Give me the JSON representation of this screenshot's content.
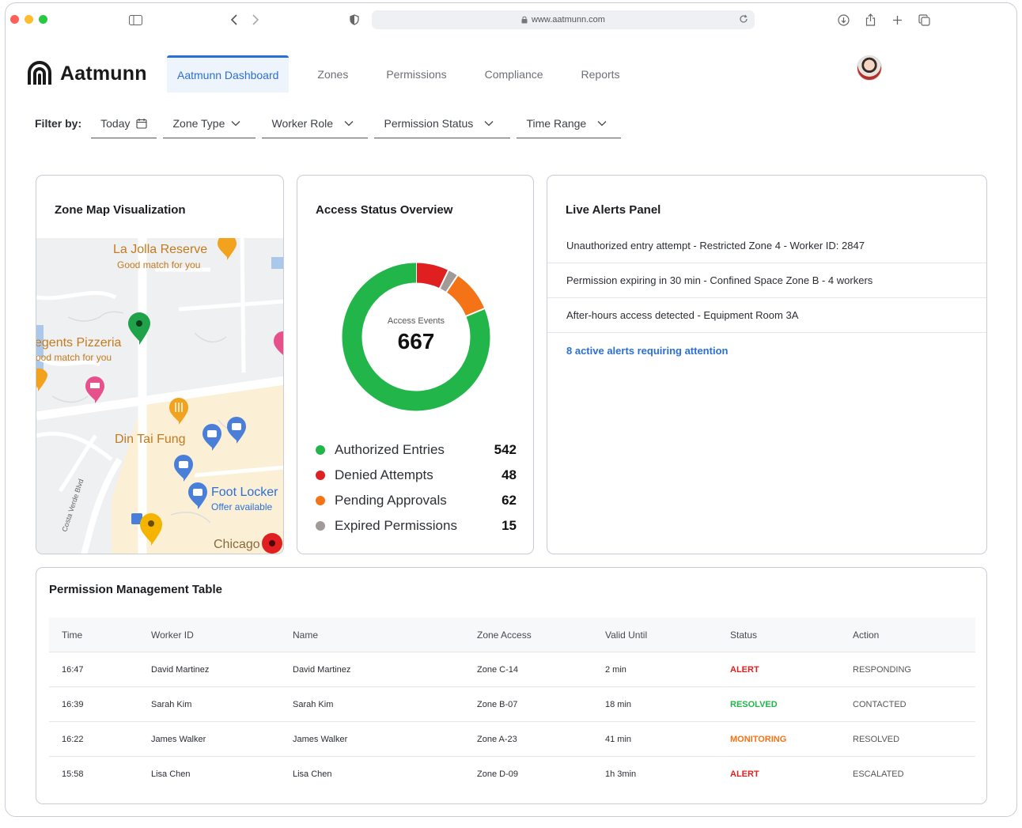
{
  "browser": {
    "url": "www.aatmunn.com"
  },
  "brand": {
    "name": "Aatmunn"
  },
  "nav": {
    "items": [
      {
        "label": "Aatmunn Dashboard"
      },
      {
        "label": "Zones"
      },
      {
        "label": "Permissions"
      },
      {
        "label": "Compliance"
      },
      {
        "label": "Reports"
      }
    ]
  },
  "filters": {
    "label": "Filter by:",
    "items": [
      {
        "label": "Today",
        "icon": "calendar-icon"
      },
      {
        "label": "Zone Type",
        "icon": "chevron-down-icon"
      },
      {
        "label": "Worker Role",
        "icon": "chevron-down-icon"
      },
      {
        "label": "Permission Status",
        "icon": "chevron-down-icon"
      },
      {
        "label": "Time Range",
        "icon": "chevron-down-icon"
      }
    ]
  },
  "map": {
    "title": "Zone Map Visualization",
    "places": [
      {
        "name": "La Jolla Reserve",
        "note": "Good match for you"
      },
      {
        "name": "egents Pizzeria",
        "note": "ood match for you"
      },
      {
        "name": "Din Tai Fung"
      },
      {
        "name": "Foot Locker",
        "note": "Offer available"
      },
      {
        "name": "Chicago"
      },
      {
        "name": "Costa Verde Blvd"
      }
    ]
  },
  "access": {
    "title": "Access Status Overview",
    "center_label": "Access Events",
    "total": "667"
  },
  "chart_data": {
    "type": "pie",
    "title": "Access Status Overview",
    "categories": [
      "Authorized Entries",
      "Denied Attempts",
      "Pending Approvals",
      "Expired Permissions"
    ],
    "values": [
      542,
      48,
      62,
      15
    ],
    "colors": [
      "#22b64a",
      "#e02020",
      "#f47316",
      "#a19a98"
    ]
  },
  "legend_display": [
    {
      "name": "Authorized Entries",
      "count": "542",
      "color": "#22b64a"
    },
    {
      "name": "Denied Attempts",
      "count": "48",
      "color": "#e02020"
    },
    {
      "name": "Pending Approvals",
      "count": "62",
      "color": "#f47316"
    },
    {
      "name": "Expired Permissions",
      "count": "15",
      "color": "#a19a98"
    }
  ],
  "alerts": {
    "title": "Live Alerts Panel",
    "items": [
      "Unauthorized entry attempt - Restricted Zone 4 - Worker ID: 2847",
      "Permission expiring in 30 min - Confined Space Zone B - 4 workers",
      "After-hours access detected - Equipment Room 3A"
    ],
    "summary_link": "8 active alerts requiring attention"
  },
  "table": {
    "title": "Permission Management Table",
    "columns": [
      "Time",
      "Worker ID",
      "Name",
      "Zone Access",
      "Valid Until",
      "Status",
      "Action"
    ],
    "rows": [
      {
        "time": "16:47",
        "worker_id": "David Martinez",
        "name": "David Martinez",
        "zone": "Zone C-14",
        "valid": "2 min",
        "status": "ALERT",
        "status_color": "#e02020",
        "action": "RESPONDING"
      },
      {
        "time": "16:39",
        "worker_id": "Sarah Kim",
        "name": "Sarah Kim",
        "zone": "Zone B-07",
        "valid": "18 min",
        "status": "RESOLVED",
        "status_color": "#22b64a",
        "action": "CONTACTED"
      },
      {
        "time": "16:22",
        "worker_id": "James Walker",
        "name": "James Walker",
        "zone": "Zone A-23",
        "valid": "41 min",
        "status": "MONITORING",
        "status_color": "#f47316",
        "action": "RESOLVED"
      },
      {
        "time": "15:58",
        "worker_id": "Lisa Chen",
        "name": "Lisa Chen",
        "zone": "Zone D-09",
        "valid": "1h 3min",
        "status": "ALERT",
        "status_color": "#e02020",
        "action": "ESCALATED"
      }
    ]
  }
}
